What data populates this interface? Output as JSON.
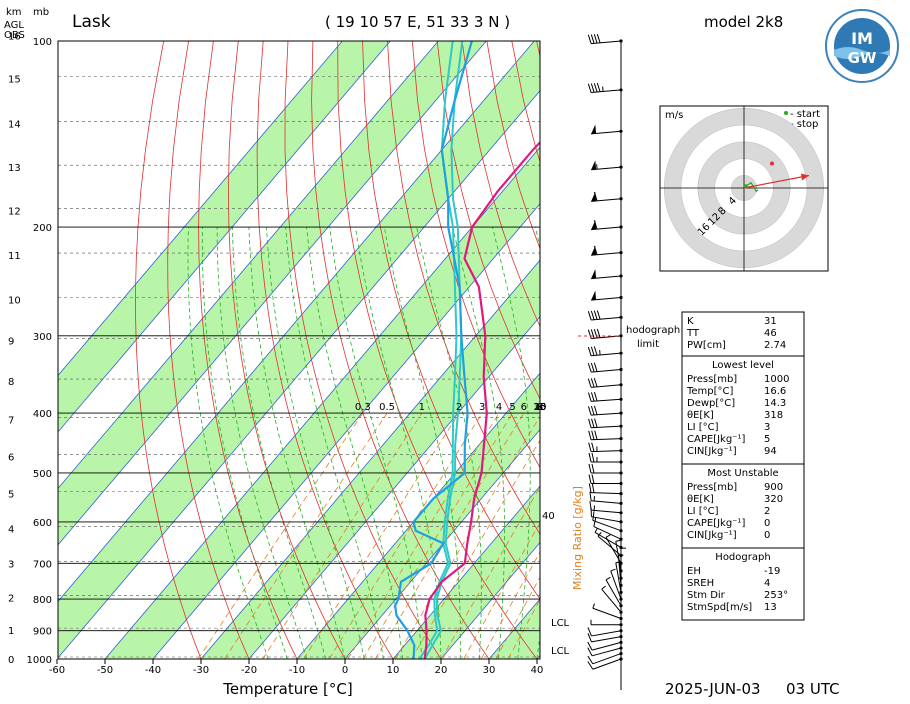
{
  "header": {
    "station": "Lask",
    "coords": "( 19 10 57 E, 51 33 3 N )",
    "model": "model 2k8",
    "footer_date": "2025-JUN-03",
    "footer_time": "03 UTC",
    "height_unit_km": "km",
    "height_unit_mb": "mb",
    "agl": "AGL",
    "obs": "OBS"
  },
  "logo": {
    "text_top": "IM",
    "text_bottom": "GW"
  },
  "colors": {
    "temperature": "#e0197d",
    "dewpoint": "#1fa0e0",
    "parcel": "#2ec8c8",
    "moist_band": "#b8f5a8",
    "dry_adiabat": "#e03030",
    "moist_adiabat": "#20b020",
    "mixing_ratio": "#e08020",
    "isotherm": "#3060d0",
    "wind_marker": "#e03030"
  },
  "chart_data": {
    "type": "skew-t",
    "xlabel": "Temperature [°C]",
    "x_ticks": [
      -60,
      -50,
      -40,
      -30,
      -20,
      -10,
      0,
      10,
      20,
      30,
      40
    ],
    "pressure_ticks": [
      1000,
      900,
      800,
      700,
      600,
      500,
      400,
      300,
      200,
      100
    ],
    "height_ticks_km": [
      0,
      1,
      2,
      3,
      4,
      5,
      6,
      7,
      8,
      9,
      10,
      11,
      12,
      13,
      14,
      15,
      16
    ],
    "mixing_ratio_label": "Mixing Ratio [g/kg]",
    "mixing_ratio_ticks": [
      "0.3",
      "0.5",
      "1",
      "2",
      "3",
      "4",
      "5",
      "6",
      "8",
      "10",
      "15",
      "20",
      "25",
      "30",
      "35"
    ],
    "mixing_ratio_side_value": "40",
    "lcl_labels": [
      "LCL",
      "LCL"
    ],
    "hodograph_limit_label": [
      "hodograph",
      "limit"
    ],
    "temperature_profile": [
      [
        1000,
        16.6
      ],
      [
        950,
        14.5
      ],
      [
        900,
        12
      ],
      [
        850,
        9
      ],
      [
        800,
        7
      ],
      [
        750,
        6.5
      ],
      [
        700,
        8
      ],
      [
        650,
        5
      ],
      [
        600,
        2
      ],
      [
        550,
        -1.5
      ],
      [
        500,
        -4.5
      ],
      [
        450,
        -9
      ],
      [
        400,
        -14
      ],
      [
        350,
        -21
      ],
      [
        300,
        -28
      ],
      [
        250,
        -38
      ],
      [
        225,
        -46
      ],
      [
        200,
        -50
      ],
      [
        175,
        -51
      ],
      [
        150,
        -51
      ],
      [
        125,
        -50
      ],
      [
        100,
        -49
      ]
    ],
    "dewpoint_profile": [
      [
        1000,
        14.3
      ],
      [
        950,
        12
      ],
      [
        900,
        8
      ],
      [
        850,
        3
      ],
      [
        820,
        1
      ],
      [
        800,
        0.5
      ],
      [
        750,
        -2
      ],
      [
        700,
        1
      ],
      [
        650,
        0
      ],
      [
        620,
        -8
      ],
      [
        600,
        -10
      ],
      [
        550,
        -10
      ],
      [
        500,
        -8
      ],
      [
        450,
        -13
      ],
      [
        400,
        -18
      ],
      [
        350,
        -25
      ],
      [
        300,
        -33
      ],
      [
        250,
        -42
      ],
      [
        200,
        -55
      ],
      [
        180,
        -60
      ],
      [
        150,
        -70
      ],
      [
        125,
        -76
      ],
      [
        100,
        -83
      ]
    ],
    "parcel_profile": [
      [
        1000,
        16.6
      ],
      [
        950,
        15.8
      ],
      [
        900,
        15
      ],
      [
        850,
        11.5
      ],
      [
        800,
        8.5
      ],
      [
        750,
        6.5
      ],
      [
        700,
        5
      ],
      [
        650,
        0.5
      ],
      [
        600,
        -3
      ],
      [
        550,
        -6.5
      ],
      [
        500,
        -10
      ],
      [
        450,
        -15
      ],
      [
        400,
        -20
      ],
      [
        350,
        -26
      ],
      [
        300,
        -33
      ],
      [
        250,
        -42
      ],
      [
        200,
        -53
      ],
      [
        180,
        -59
      ],
      [
        150,
        -68
      ],
      [
        125,
        -76
      ],
      [
        100,
        -85
      ]
    ],
    "parcel2_profile": [
      [
        1000,
        15.5
      ],
      [
        950,
        15
      ],
      [
        900,
        14.2
      ],
      [
        850,
        11
      ],
      [
        800,
        8
      ],
      [
        750,
        6
      ],
      [
        700,
        4.5
      ],
      [
        650,
        0
      ],
      [
        600,
        -3.5
      ],
      [
        550,
        -7
      ],
      [
        500,
        -10.5
      ],
      [
        450,
        -15.5
      ],
      [
        400,
        -21
      ],
      [
        350,
        -27
      ],
      [
        300,
        -34
      ],
      [
        250,
        -43
      ],
      [
        200,
        -54
      ],
      [
        180,
        -60
      ],
      [
        150,
        -70
      ],
      [
        125,
        -78
      ],
      [
        100,
        -87
      ]
    ],
    "wind_pressures": [
      1000,
      980,
      960,
      940,
      920,
      900,
      880,
      860,
      840,
      820,
      800,
      780,
      760,
      740,
      720,
      700,
      680,
      660,
      640,
      620,
      600,
      580,
      560,
      540,
      520,
      500,
      480,
      460,
      440,
      420,
      400,
      380,
      360,
      340,
      320,
      300,
      280,
      260,
      240,
      220,
      200,
      180,
      160,
      140,
      120,
      100
    ],
    "wind_speeds": [
      6,
      6,
      7,
      7,
      6,
      5,
      4,
      3,
      3,
      3,
      3,
      3,
      3,
      3,
      3,
      4,
      4,
      4,
      5,
      5,
      7,
      8,
      9,
      10,
      11,
      12,
      13,
      14,
      15,
      15,
      16,
      16,
      17,
      17,
      18,
      20,
      22,
      25,
      27,
      30,
      32,
      30,
      28,
      26,
      24,
      21
    ],
    "wind_dirs": [
      250,
      250,
      255,
      255,
      260,
      260,
      270,
      290,
      320,
      330,
      340,
      350,
      355,
      0,
      350,
      330,
      310,
      300,
      295,
      290,
      280,
      275,
      275,
      272,
      270,
      270,
      270,
      268,
      268,
      267,
      266,
      266,
      265,
      265,
      265,
      265,
      265,
      265,
      265,
      265,
      265,
      265,
      265,
      265,
      265,
      265
    ]
  },
  "hodograph": {
    "unit": "m/s",
    "legend_start": "- start",
    "legend_stop": "- stop",
    "ring_labels": [
      "4",
      "8",
      "12",
      "16"
    ],
    "trace": [
      [
        0.5,
        0.5
      ],
      [
        2,
        1.5
      ],
      [
        3,
        0
      ],
      [
        3.5,
        -1
      ],
      [
        4,
        -0.5
      ]
    ],
    "storm_vector": [
      13,
      2.5
    ]
  },
  "indices": {
    "basic": [
      {
        "label": "K",
        "value": "31"
      },
      {
        "label": "TT",
        "value": "46"
      },
      {
        "label": "PW[cm]",
        "value": "2.74"
      }
    ],
    "lowest_title": "Lowest level",
    "lowest": [
      {
        "label": "Press[mb]",
        "value": "1000"
      },
      {
        "label": "Temp[°C]",
        "value": "16.6"
      },
      {
        "label": "Dewp[°C]",
        "value": "14.3"
      },
      {
        "label": "θE[K]",
        "value": "318"
      },
      {
        "label": "LI [°C]",
        "value": "3"
      },
      {
        "label": "CAPE[Jkg⁻¹]",
        "value": "5"
      },
      {
        "label": "CIN[Jkg⁻¹]",
        "value": "94"
      }
    ],
    "unstable_title": "Most Unstable",
    "unstable": [
      {
        "label": "Press[mb]",
        "value": "900"
      },
      {
        "label": "θE[K]",
        "value": "320"
      },
      {
        "label": "LI [°C]",
        "value": "2"
      },
      {
        "label": "CAPE[Jkg⁻¹]",
        "value": "0"
      },
      {
        "label": "CIN[Jkg⁻¹]",
        "value": "0"
      }
    ],
    "hodo_title": "Hodograph",
    "hodo": [
      {
        "label": "EH",
        "value": "-19"
      },
      {
        "label": "SREH",
        "value": "4"
      },
      {
        "label": "Stm Dir",
        "value": "253°"
      },
      {
        "label": "StmSpd[m/s]",
        "value": "13"
      }
    ]
  }
}
